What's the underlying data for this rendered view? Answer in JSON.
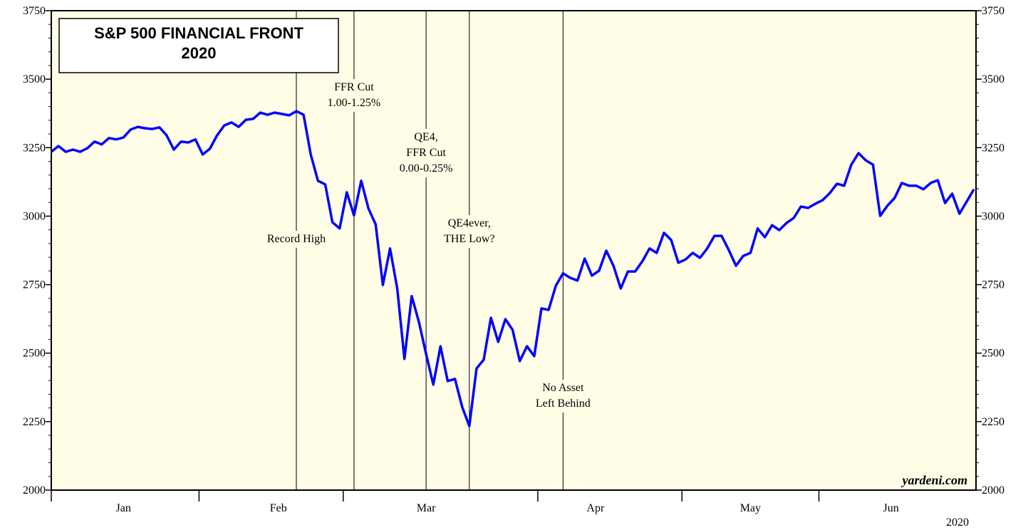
{
  "chart_data": {
    "type": "line",
    "title": [
      "S&P 500 FINANCIAL FRONT",
      "2020"
    ],
    "source": "yardeni.com",
    "year_label": "2020",
    "series": [
      {
        "name": "S&P 500",
        "color": "#0000ff",
        "values": [
          3235,
          3256,
          3235,
          3243,
          3235,
          3248,
          3272,
          3262,
          3285,
          3280,
          3287,
          3316,
          3326,
          3321,
          3318,
          3324,
          3295,
          3243,
          3272,
          3269,
          3280,
          3225,
          3246,
          3295,
          3331,
          3342,
          3326,
          3352,
          3355,
          3378,
          3370,
          3378,
          3373,
          3368,
          3383,
          3370,
          3225,
          3129,
          3116,
          2978,
          2955,
          3087,
          3003,
          3129,
          3028,
          2970,
          2749,
          2882,
          2736,
          2479,
          2708,
          2614,
          2497,
          2385,
          2525,
          2398,
          2406,
          2304,
          2234,
          2444,
          2476,
          2629,
          2541,
          2624,
          2585,
          2471,
          2525,
          2489,
          2663,
          2658,
          2746,
          2791,
          2775,
          2765,
          2845,
          2783,
          2801,
          2874,
          2819,
          2736,
          2798,
          2798,
          2835,
          2882,
          2866,
          2939,
          2913,
          2830,
          2842,
          2866,
          2848,
          2882,
          2928,
          2928,
          2876,
          2819,
          2855,
          2866,
          2955,
          2923,
          2967,
          2949,
          2975,
          2993,
          3035,
          3030,
          3045,
          3058,
          3084,
          3118,
          3111,
          3188,
          3230,
          3204,
          3188,
          3001,
          3038,
          3066,
          3121,
          3111,
          3111,
          3098,
          3121,
          3131,
          3048,
          3082,
          3009,
          3053,
          3098
        ]
      }
    ],
    "xlim": [
      0,
      128
    ],
    "xticks": [
      {
        "value": 10,
        "label": "Jan"
      },
      {
        "value": 31.5,
        "label": "Feb"
      },
      {
        "value": 52,
        "label": "Mar"
      },
      {
        "value": 75.5,
        "label": "Apr"
      },
      {
        "value": 97,
        "label": "May"
      },
      {
        "value": 116.5,
        "label": "Jun"
      }
    ],
    "month_boundaries": [
      0,
      20.5,
      40.5,
      67.5,
      87.5,
      106.5
    ],
    "ylim": [
      2000,
      3750
    ],
    "yticks": [
      2000,
      2250,
      2500,
      2750,
      3000,
      3250,
      3500,
      3750
    ],
    "events": [
      {
        "x": 34,
        "label": [
          "Record High"
        ]
      },
      {
        "x": 42,
        "label": [
          "FFR Cut",
          "1.00-1.25%"
        ]
      },
      {
        "x": 52,
        "label": [
          "QE4,",
          "FFR Cut",
          "0.00-0.25%"
        ]
      },
      {
        "x": 58,
        "label": [
          "QE4ever,",
          "THE Low?"
        ]
      },
      {
        "x": 71,
        "label": [
          "No Asset",
          "Left Behind"
        ]
      }
    ]
  }
}
